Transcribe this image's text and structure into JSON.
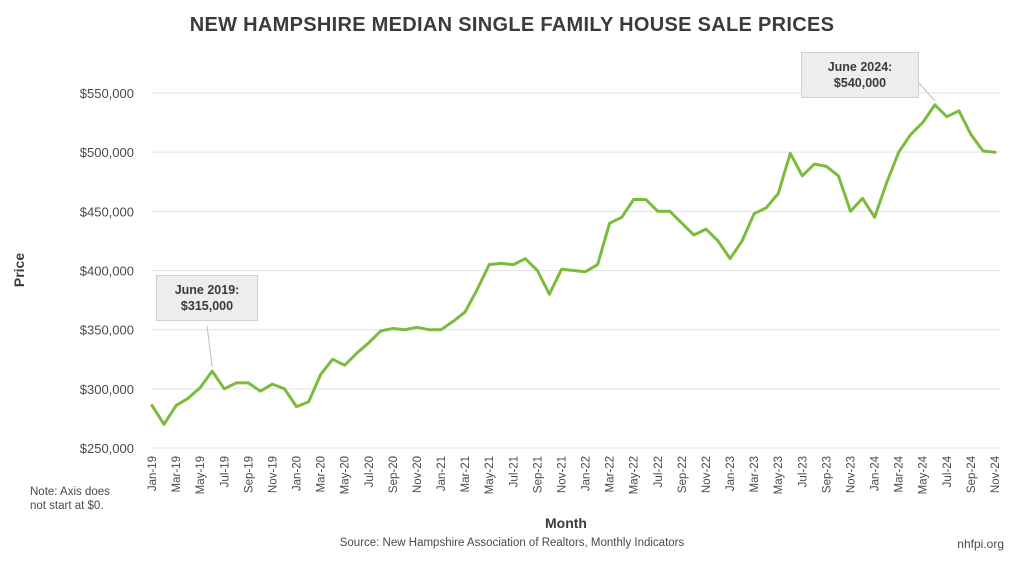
{
  "chart_data": {
    "type": "line",
    "title": "NEW HAMPSHIRE MEDIAN SINGLE FAMILY HOUSE SALE PRICES",
    "xlabel": "Month",
    "ylabel": "Price",
    "ylim": [
      250000,
      550000
    ],
    "yticks": [
      "$250,000",
      "$300,000",
      "$350,000",
      "$400,000",
      "$450,000",
      "$500,000",
      "$550,000"
    ],
    "ytick_values": [
      250000,
      300000,
      350000,
      400000,
      450000,
      500000,
      550000
    ],
    "grid": true,
    "line_color": "#7dbb3f",
    "x_tick_labels": [
      "Jan-19",
      "Mar-19",
      "May-19",
      "Jul-19",
      "Sep-19",
      "Nov-19",
      "Jan-20",
      "Mar-20",
      "May-20",
      "Jul-20",
      "Sep-20",
      "Nov-20",
      "Jan-21",
      "Mar-21",
      "May-21",
      "Jul-21",
      "Sep-21",
      "Nov-21",
      "Jan-22",
      "Mar-22",
      "May-22",
      "Jul-22",
      "Sep-22",
      "Nov-22",
      "Jan-23",
      "Mar-23",
      "May-23",
      "Jul-23",
      "Sep-23",
      "Nov-23",
      "Jan-24",
      "Mar-24",
      "May-24",
      "Jul-24",
      "Sep-24",
      "Nov-24"
    ],
    "series": [
      {
        "values": [
          286000,
          270000,
          286000,
          292000,
          301000,
          315000,
          300000,
          305000,
          305000,
          298000,
          304000,
          300000,
          285000,
          289000,
          312000,
          325000,
          320000,
          330000,
          339000,
          349000,
          351000,
          350000,
          352000,
          350000,
          350000,
          357000,
          365000,
          384000,
          405000,
          406000,
          405000,
          410000,
          400000,
          380000,
          401000,
          400000,
          399000,
          405000,
          440000,
          445000,
          460000,
          460000,
          450000,
          450000,
          440000,
          430000,
          435000,
          425000,
          410000,
          425000,
          448000,
          453000,
          465000,
          499000,
          480000,
          490000,
          488000,
          480000,
          450000,
          461000,
          445000,
          474000,
          500000,
          515000,
          525000,
          540000,
          530000,
          535000,
          515000,
          501000,
          500000
        ]
      }
    ],
    "annotations": [
      {
        "line1": "June 2019:",
        "line2": "$315,000"
      },
      {
        "line1": "June 2024:",
        "line2": "$540,000"
      }
    ]
  },
  "note": "Note: Axis does not start at $0.",
  "source": "Source: New Hampshire Association of Realtors, Monthly Indicators",
  "site": "nhfpi.org"
}
